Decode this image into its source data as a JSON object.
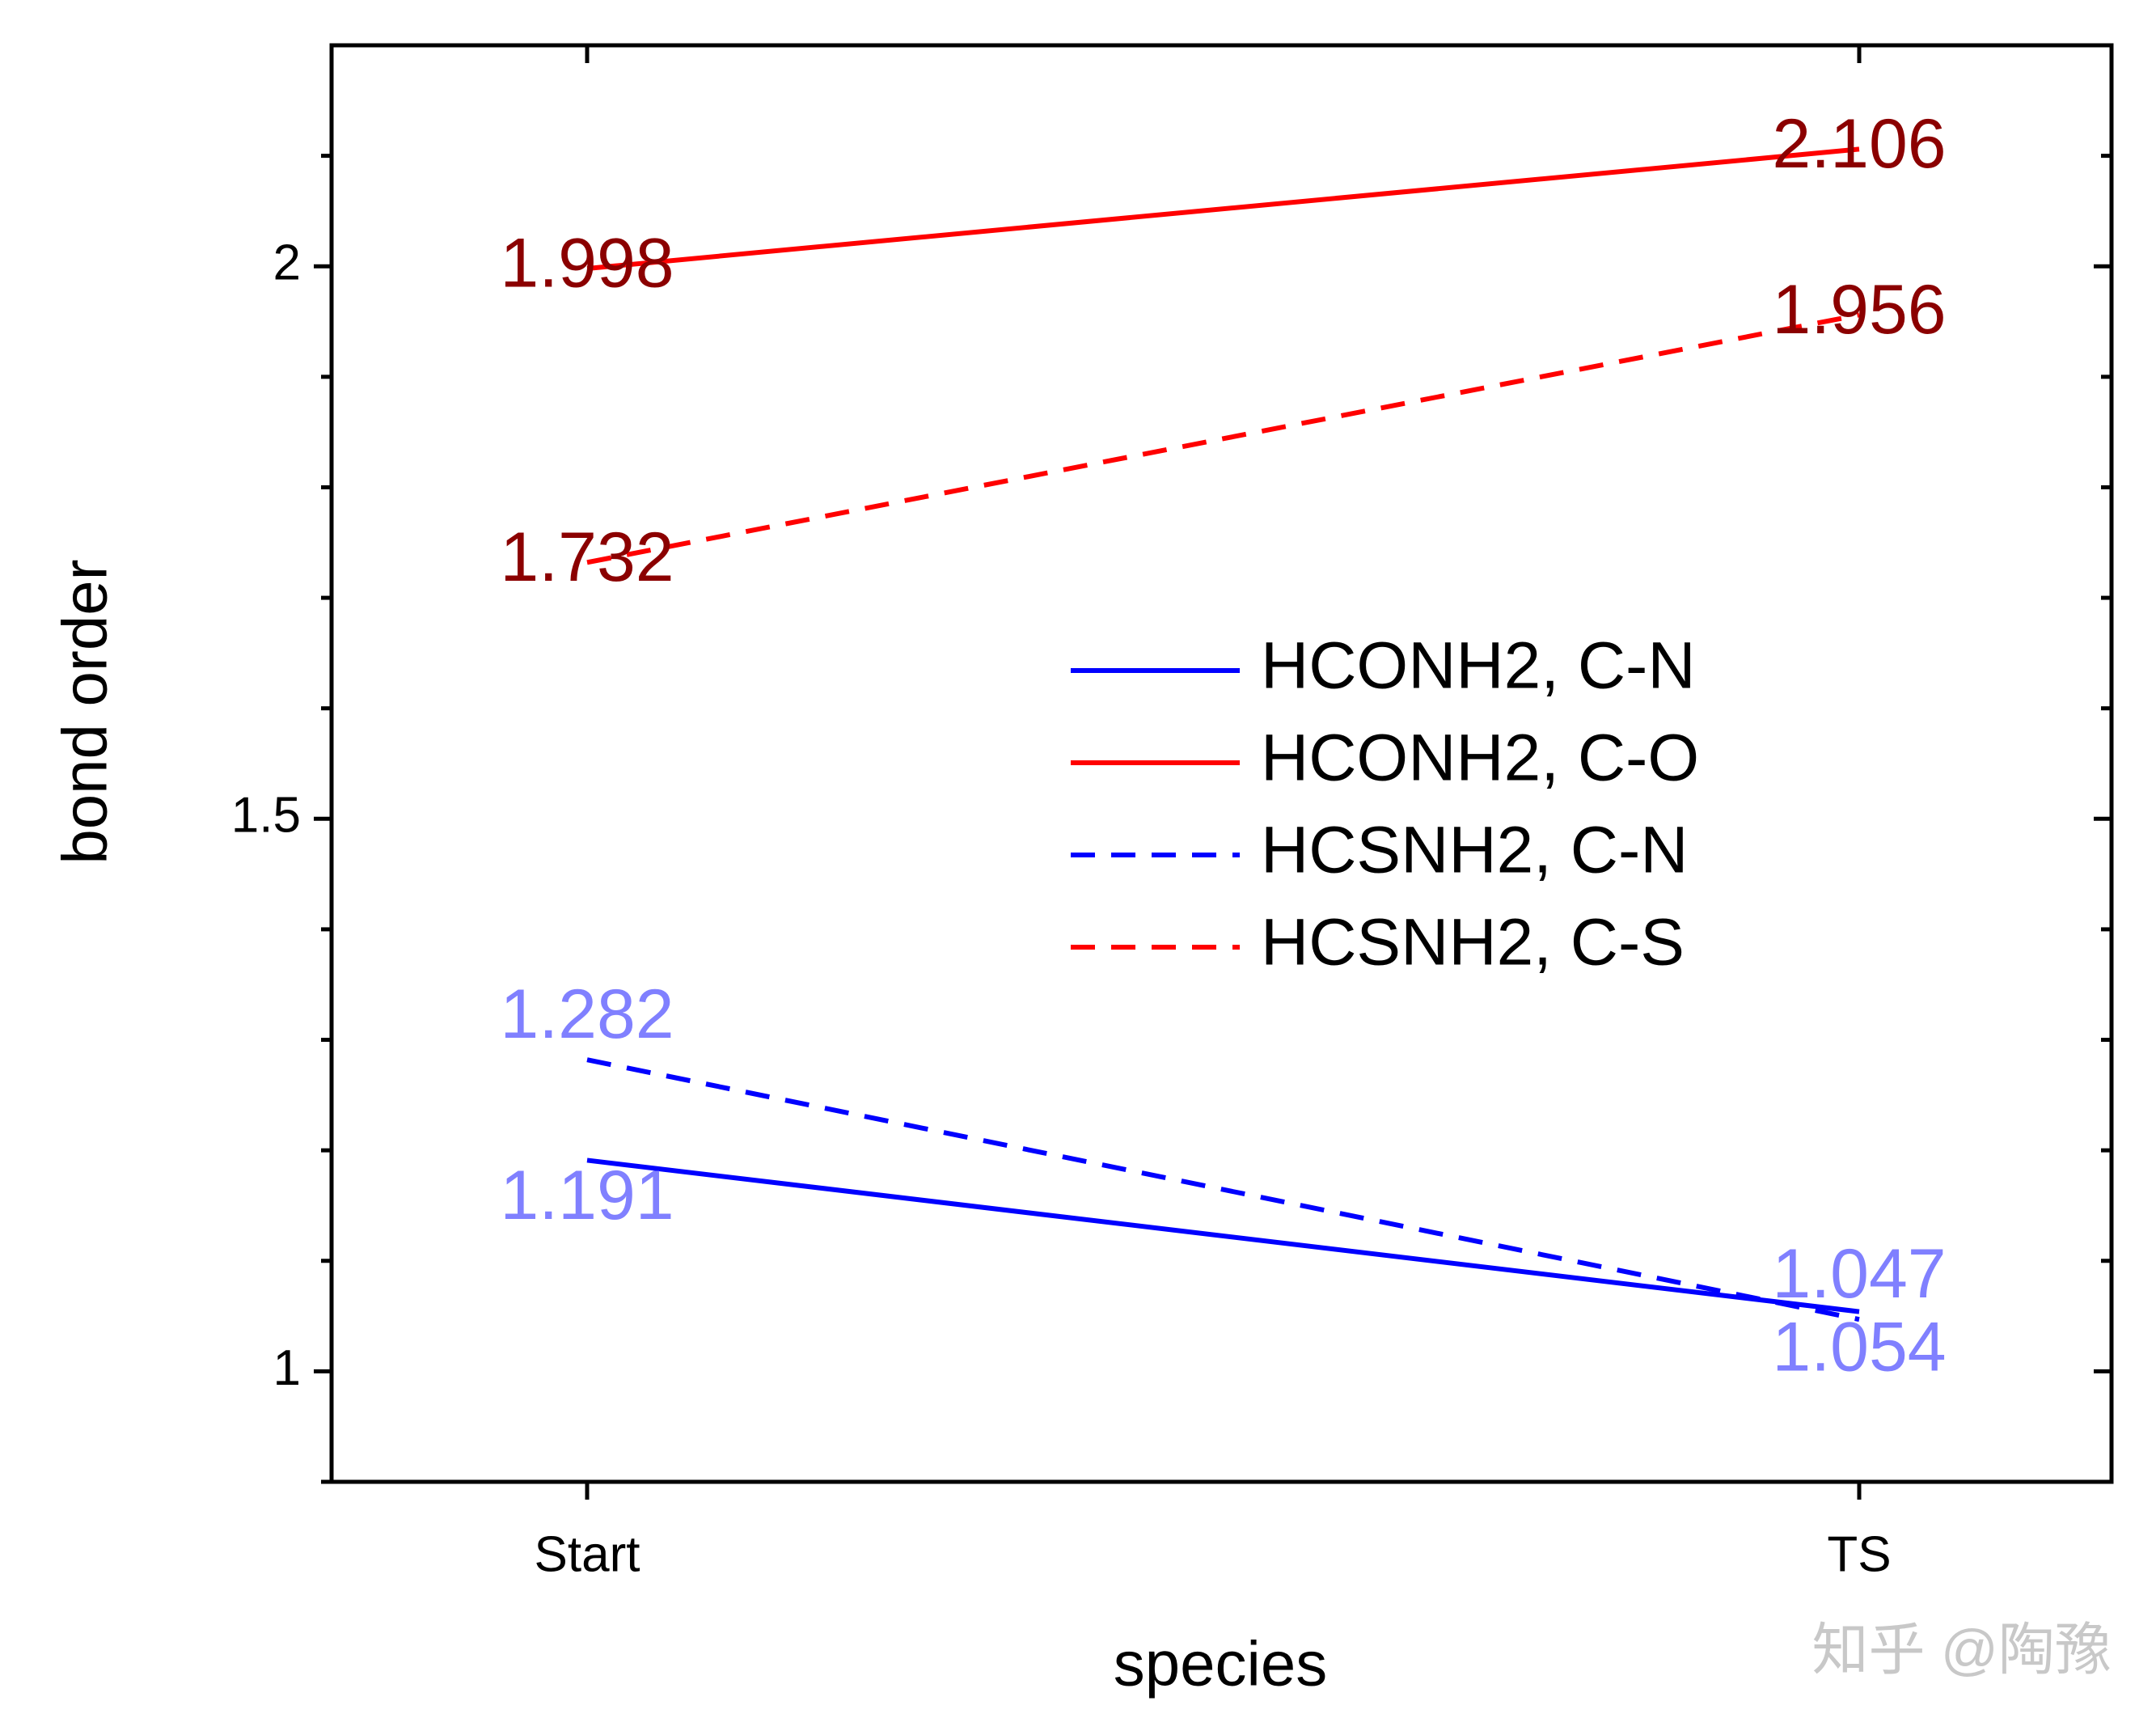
{
  "chart_data": {
    "type": "line",
    "x_label": "species",
    "y_label": "bond order",
    "categories": [
      "Start",
      "TS"
    ],
    "series": [
      {
        "name": "HCONH2, C-N",
        "color": "#0000ff",
        "label_color": "#8080ff",
        "linestyle": "solid",
        "values": [
          1.191,
          1.054
        ]
      },
      {
        "name": "HCONH2, C-O",
        "color": "#ff0000",
        "label_color": "#8b0000",
        "linestyle": "solid",
        "values": [
          1.998,
          2.106
        ]
      },
      {
        "name": "HCSNH2, C-N",
        "color": "#0000ff",
        "label_color": "#8080ff",
        "linestyle": "dashed",
        "values": [
          1.282,
          1.047
        ]
      },
      {
        "name": "HCSNH2, C-S",
        "color": "#ff0000",
        "label_color": "#8b0000",
        "linestyle": "dashed",
        "values": [
          1.732,
          1.956
        ]
      }
    ],
    "ylim": [
      0.9,
      2.2
    ],
    "yticks": [
      1,
      1.5,
      2
    ],
    "yminorticks": [
      0.9,
      1.1,
      1.2,
      1.3,
      1.4,
      1.6,
      1.7,
      1.8,
      1.9,
      2.1
    ],
    "watermark": "知乎 @陶豫"
  }
}
